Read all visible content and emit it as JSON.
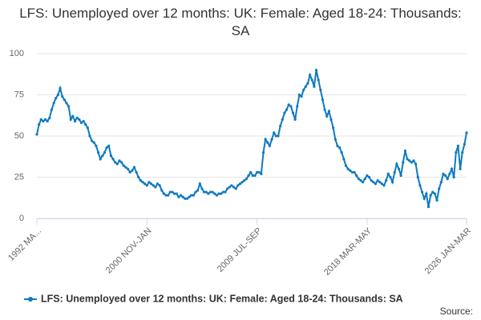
{
  "chart_data": {
    "type": "line",
    "title": "LFS: Unemployed over 12 months: UK: Female: Aged 18-24: Thousands: SA",
    "source": "Source:",
    "categories": [
      "1992 MA...",
      null,
      null,
      null,
      null,
      null,
      null,
      null,
      null,
      null,
      null,
      null,
      null,
      null,
      null,
      null,
      null,
      null,
      null,
      null,
      null,
      null,
      null,
      null,
      null,
      null,
      null,
      null,
      null,
      null,
      null,
      null,
      null,
      null,
      null,
      null,
      null,
      null,
      null,
      null,
      null,
      null,
      null,
      null,
      null,
      null,
      null,
      null,
      null,
      null,
      null,
      null,
      "2000 NOV-JAN",
      null,
      null,
      null,
      null,
      null,
      null,
      null,
      null,
      null,
      null,
      null,
      null,
      null,
      null,
      null,
      null,
      null,
      null,
      null,
      null,
      null,
      null,
      null,
      null,
      null,
      null,
      null,
      null,
      null,
      null,
      null,
      null,
      null,
      null,
      null,
      null,
      null,
      null,
      null,
      null,
      null,
      null,
      null,
      null,
      null,
      null,
      null,
      null,
      null,
      null,
      null,
      "2009 JUL-SEP",
      null,
      null,
      null,
      null,
      null,
      null,
      null,
      null,
      null,
      null,
      null,
      null,
      null,
      null,
      null,
      null,
      null,
      null,
      null,
      null,
      null,
      null,
      null,
      null,
      null,
      null,
      null,
      null,
      null,
      null,
      null,
      null,
      null,
      null,
      null,
      null,
      null,
      null,
      null,
      null,
      null,
      null,
      null,
      null,
      null,
      null,
      null,
      null,
      null,
      null,
      null,
      "2018 MAR-MAY",
      null,
      null,
      null,
      null,
      null,
      null,
      null,
      null,
      null,
      null,
      null,
      null,
      null,
      null,
      null,
      null,
      null,
      null,
      null,
      null,
      null,
      null,
      null,
      null,
      null,
      null,
      null,
      null,
      null,
      null,
      null,
      null,
      null,
      null,
      null,
      null,
      null,
      null,
      null,
      null,
      null,
      null,
      null,
      null,
      null,
      null,
      "2026 JAN-MAR"
    ],
    "series": [
      {
        "name": "LFS: Unemployed over 12 months: UK: Female: Aged 18-24: Thousands: SA",
        "color": "#0f7ac0",
        "values": [
          51,
          57,
          60,
          59,
          60,
          59,
          61,
          66,
          70,
          73,
          75,
          79,
          74,
          72,
          70,
          68,
          60,
          62,
          59,
          61,
          60,
          58,
          59,
          57,
          55,
          50,
          47,
          46,
          44,
          40,
          36,
          38,
          40,
          43,
          44,
          38,
          36,
          34,
          33,
          35,
          34,
          32,
          31,
          30,
          28,
          29,
          31,
          28,
          25,
          23,
          22,
          21,
          20,
          22,
          21,
          20,
          19,
          21,
          20,
          17,
          15,
          14,
          14,
          16,
          16,
          15,
          15,
          13,
          14,
          13,
          12,
          12,
          13,
          14,
          14,
          16,
          17,
          21,
          18,
          16,
          16,
          15,
          16,
          16,
          15,
          14,
          15,
          15,
          16,
          16,
          18,
          19,
          20,
          19,
          18,
          20,
          21,
          22,
          23,
          24,
          26,
          28,
          26,
          26,
          28,
          28,
          27,
          40,
          48,
          46,
          44,
          48,
          52,
          50,
          50,
          56,
          60,
          64,
          66,
          69,
          68,
          64,
          60,
          68,
          75,
          74,
          78,
          80,
          82,
          87,
          84,
          80,
          90,
          84,
          78,
          72,
          66,
          62,
          65,
          60,
          55,
          48,
          44,
          43,
          40,
          36,
          32,
          30,
          29,
          28,
          28,
          26,
          24,
          23,
          22,
          24,
          26,
          25,
          23,
          22,
          21,
          23,
          22,
          21,
          20,
          23,
          27,
          25,
          22,
          28,
          33,
          30,
          26,
          34,
          41,
          36,
          35,
          34,
          35,
          33,
          25,
          20,
          16,
          12,
          15,
          7,
          14,
          16,
          15,
          11,
          18,
          22,
          27,
          26,
          24,
          27,
          30,
          25,
          40,
          44,
          30,
          40,
          45,
          52
        ]
      }
    ],
    "ylim": [
      0,
      100
    ],
    "yticks": [
      0,
      25,
      50,
      75,
      100
    ],
    "grid": true
  }
}
